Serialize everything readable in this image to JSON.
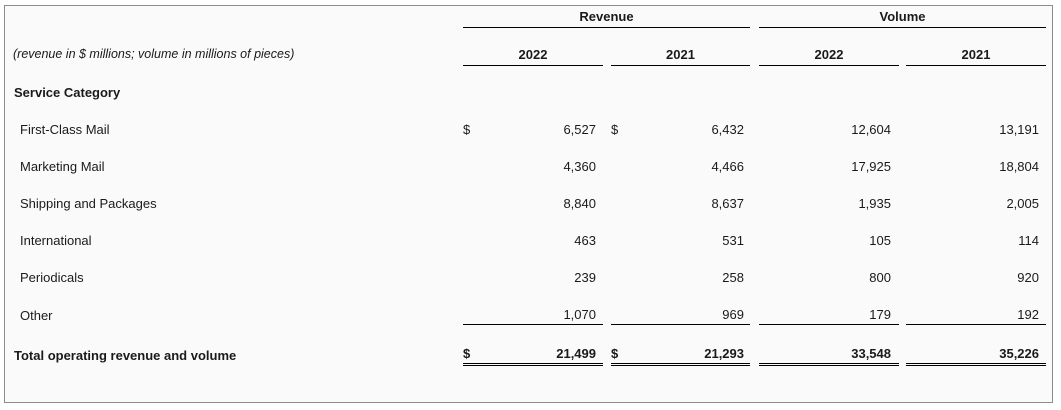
{
  "header": {
    "group_revenue": "Revenue",
    "group_volume": "Volume",
    "units_note": "(revenue in $ millions; volume in millions of pieces)",
    "col_rev_2022": "2022",
    "col_rev_2021": "2021",
    "col_vol_2022": "2022",
    "col_vol_2021": "2021"
  },
  "section_label": "Service Category",
  "currency_symbol": "$",
  "rows": [
    {
      "label": "First-Class Mail",
      "rev_2022": "6,527",
      "rev_2021": "6,432",
      "vol_2022": "12,604",
      "vol_2021": "13,191"
    },
    {
      "label": "Marketing Mail",
      "rev_2022": "4,360",
      "rev_2021": "4,466",
      "vol_2022": "17,925",
      "vol_2021": "18,804"
    },
    {
      "label": "Shipping and Packages",
      "rev_2022": "8,840",
      "rev_2021": "8,637",
      "vol_2022": "1,935",
      "vol_2021": "2,005"
    },
    {
      "label": "International",
      "rev_2022": "463",
      "rev_2021": "531",
      "vol_2022": "105",
      "vol_2021": "114"
    },
    {
      "label": "Periodicals",
      "rev_2022": "239",
      "rev_2021": "258",
      "vol_2022": "800",
      "vol_2021": "920"
    },
    {
      "label": "Other",
      "rev_2022": "1,070",
      "rev_2021": "969",
      "vol_2022": "179",
      "vol_2021": "192"
    }
  ],
  "total": {
    "label": "Total operating revenue and volume",
    "rev_2022": "21,499",
    "rev_2021": "21,293",
    "vol_2022": "33,548",
    "vol_2021": "35,226"
  }
}
